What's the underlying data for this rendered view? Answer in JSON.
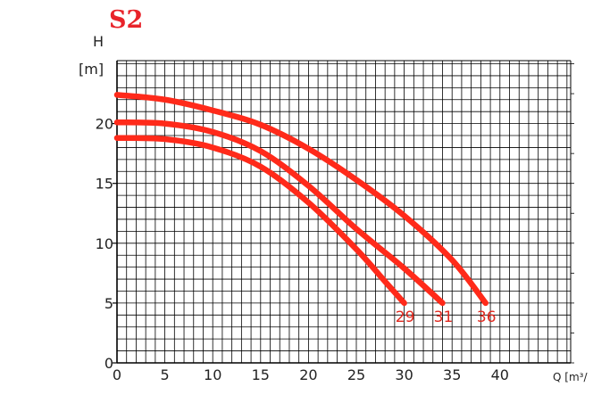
{
  "chart_data": {
    "type": "line",
    "title": "S2",
    "ylabel_symbol": "H",
    "ylabel_unit": "[m]",
    "xlabel": "Q [m³/",
    "xticks": [
      0,
      5,
      10,
      15,
      20,
      25,
      30,
      35,
      40
    ],
    "yticks": [
      0,
      5,
      10,
      15,
      20
    ],
    "xlim": [
      0,
      47.5
    ],
    "ylim": [
      0,
      25.5
    ],
    "grid": true,
    "colors": {
      "curve": "#ff2a1a",
      "title": "#e8232a",
      "label": "#e0281e",
      "grid": "#000000"
    },
    "series": [
      {
        "name": "29",
        "points": [
          [
            0,
            18.8
          ],
          [
            5,
            18.7
          ],
          [
            10,
            18.0
          ],
          [
            15,
            16.4
          ],
          [
            20,
            13.4
          ],
          [
            25,
            9.5
          ],
          [
            28,
            6.8
          ],
          [
            30,
            5.0
          ]
        ]
      },
      {
        "name": "31",
        "points": [
          [
            0,
            20.1
          ],
          [
            5,
            20.0
          ],
          [
            10,
            19.3
          ],
          [
            15,
            17.7
          ],
          [
            20,
            14.8
          ],
          [
            25,
            11.2
          ],
          [
            30,
            7.9
          ],
          [
            34,
            5.0
          ]
        ]
      },
      {
        "name": "36",
        "points": [
          [
            0,
            22.4
          ],
          [
            5,
            22.0
          ],
          [
            10,
            21.1
          ],
          [
            15,
            19.9
          ],
          [
            20,
            17.9
          ],
          [
            25,
            15.3
          ],
          [
            30,
            12.3
          ],
          [
            35,
            8.6
          ],
          [
            38.5,
            5.0
          ]
        ]
      }
    ]
  }
}
